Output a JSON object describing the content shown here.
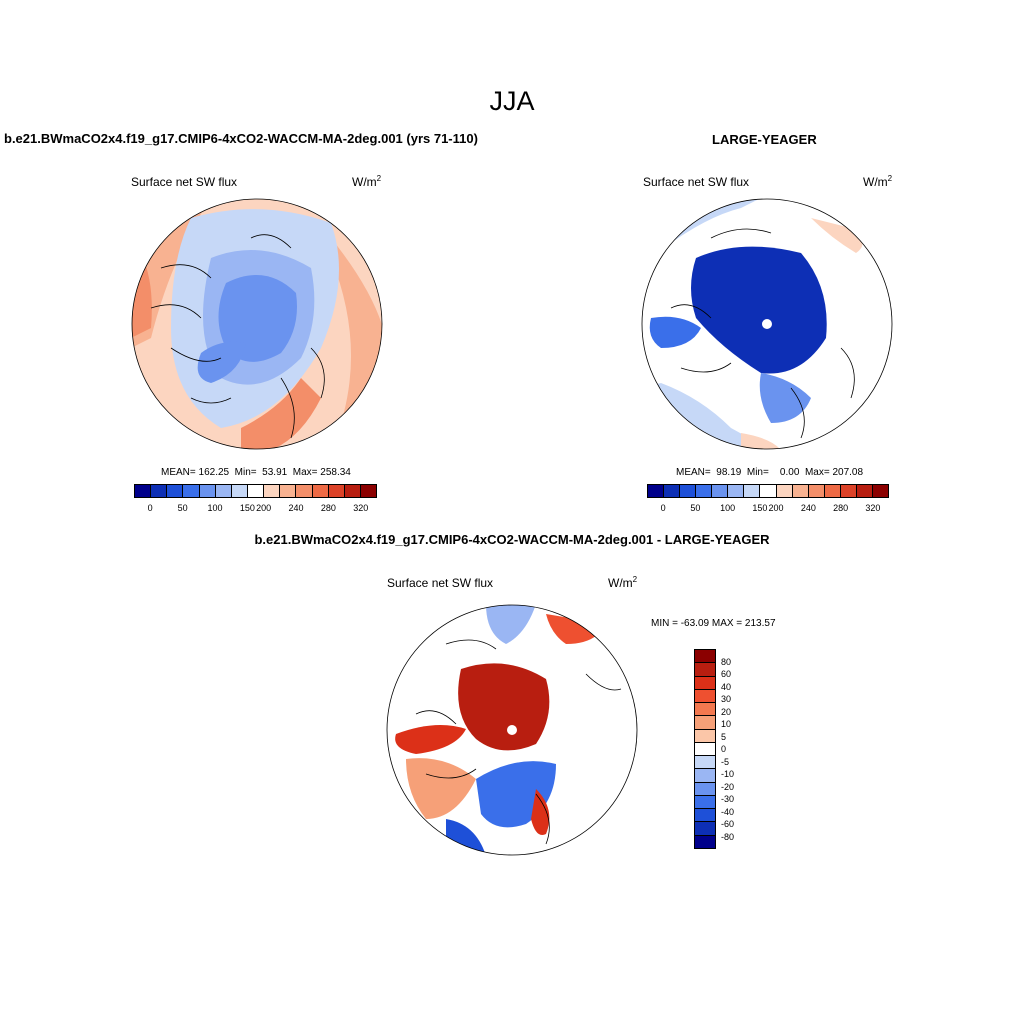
{
  "title": "JJA",
  "panels": {
    "left": {
      "case_title": "b.e21.BWmaCO2x4.f19_g17.CMIP6-4xCO2-WACCM-MA-2deg.001 (yrs 71-110)",
      "variable": "Surface net SW flux",
      "units": "W/m",
      "units_sup": "2",
      "stats": "MEAN= 162.25  Min=  53.91  Max= 258.34",
      "colorbar_labels": [
        "0",
        "50",
        "100",
        "150",
        "200",
        "240",
        "280",
        "320"
      ]
    },
    "right": {
      "case_title": "LARGE-YEAGER",
      "variable": "Surface net SW flux",
      "units": "W/m",
      "units_sup": "2",
      "stats": "MEAN=  98.19  Min=    0.00  Max= 207.08",
      "colorbar_labels": [
        "0",
        "50",
        "100",
        "150",
        "200",
        "240",
        "280",
        "320"
      ]
    },
    "diff": {
      "case_title": "b.e21.BWmaCO2x4.f19_g17.CMIP6-4xCO2-WACCM-MA-2deg.001 - LARGE-YEAGER",
      "variable": "Surface net SW flux",
      "units": "W/m",
      "units_sup": "2",
      "stats": "MIN = -63.09 MAX = 213.57",
      "colorbar_labels": [
        "80",
        "60",
        "40",
        "30",
        "20",
        "10",
        "5",
        "0",
        "-5",
        "-10",
        "-20",
        "-30",
        "-40",
        "-60",
        "-80"
      ]
    }
  },
  "colors": {
    "abs_scale": [
      "#00008b",
      "#0d2fb5",
      "#1e50d8",
      "#3a6fea",
      "#6a93ef",
      "#9ab6f3",
      "#c6d8f7",
      "#ffffff",
      "#fcd5c0",
      "#f8b291",
      "#f38e69",
      "#ee6a45",
      "#dc4228",
      "#b81e10",
      "#8b0000"
    ],
    "diff_scale": [
      "#8b0000",
      "#b81e10",
      "#dc3018",
      "#ee5030",
      "#f3784f",
      "#f6a078",
      "#fbc6a8",
      "#ffffff",
      "#c6d8f7",
      "#9ab6f3",
      "#6a93ef",
      "#3a6fea",
      "#1e50d8",
      "#0d2fb5",
      "#00008b"
    ]
  }
}
